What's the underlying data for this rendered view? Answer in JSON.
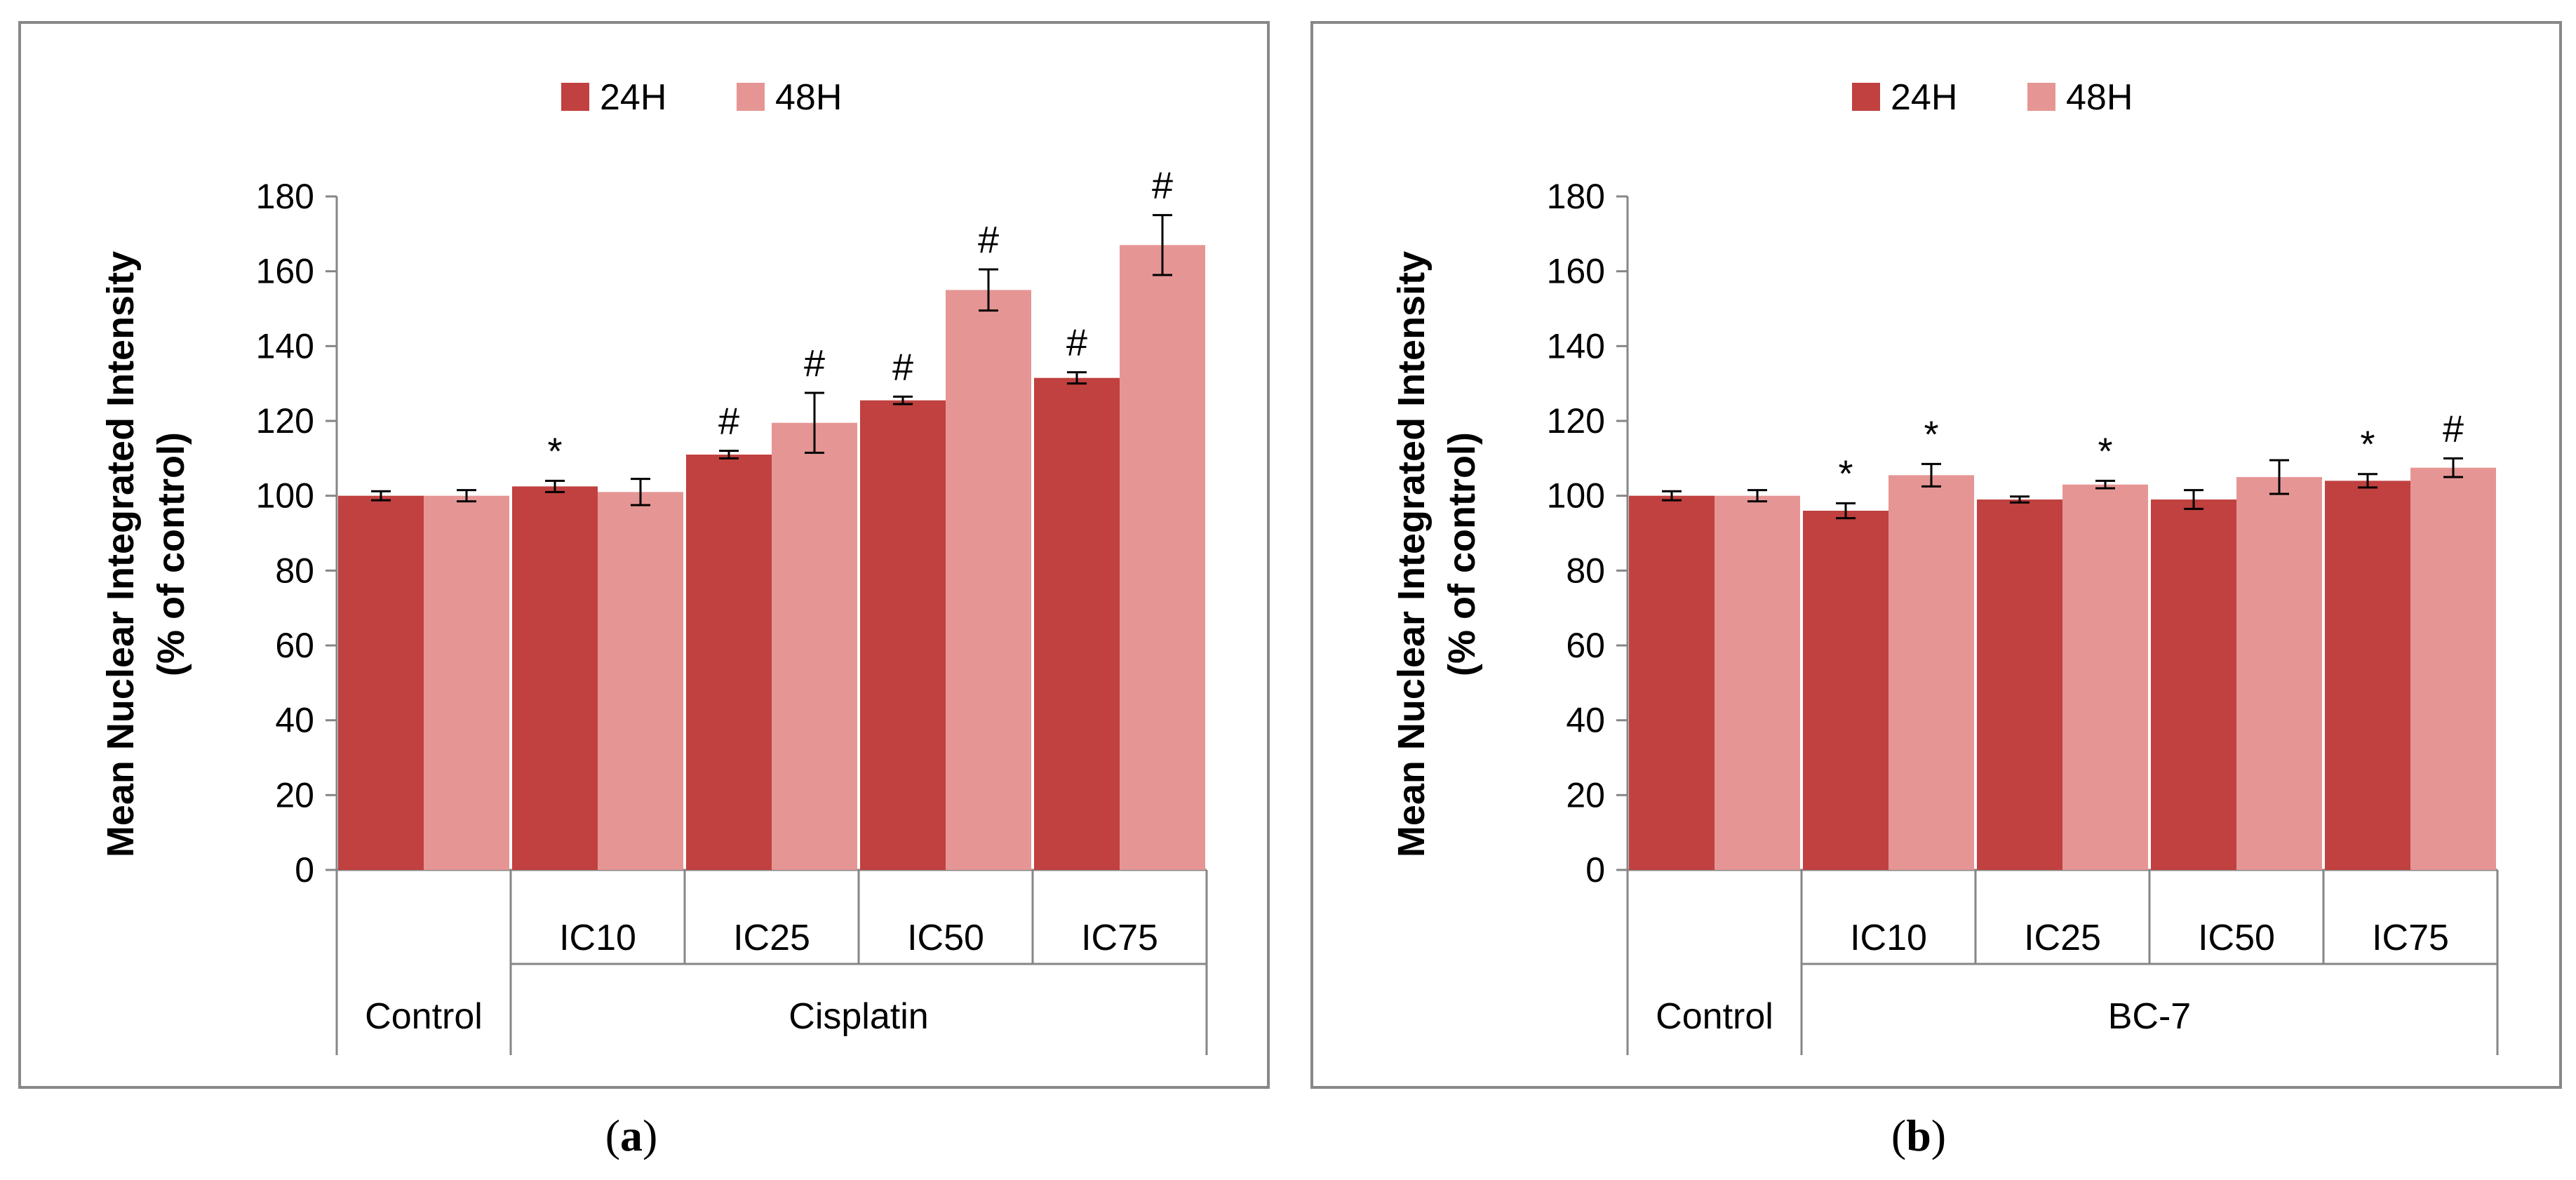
{
  "colors": {
    "series_24h": "#C0413F",
    "series_48h": "#E59694",
    "panel_border": "#888888",
    "axis": "#868686",
    "text": "#000000"
  },
  "chart_data": [
    {
      "panel": "a",
      "caption": "a",
      "type": "bar",
      "ylabel_line1": "Mean Nuclear Integrated Intensity",
      "ylabel_line2": "(% of control)",
      "ylim": [
        0,
        180
      ],
      "yticks": [
        0,
        20,
        40,
        60,
        80,
        100,
        120,
        140,
        160,
        180
      ],
      "categories": [
        "",
        "IC10",
        "IC25",
        "IC50",
        "IC75"
      ],
      "groups": [
        {
          "label": "Control",
          "span": [
            0,
            0
          ]
        },
        {
          "label": "Cisplatin",
          "span": [
            1,
            4
          ]
        }
      ],
      "series": [
        {
          "name": "24H",
          "values": [
            100,
            102.5,
            111,
            125.5,
            131.5
          ],
          "errors": [
            1.2,
            1.5,
            1.0,
            1.0,
            1.5
          ],
          "annotations": [
            "",
            "*",
            "#",
            "#",
            "#"
          ]
        },
        {
          "name": "48H",
          "values": [
            100,
            101,
            119.5,
            155,
            167
          ],
          "errors": [
            1.5,
            3.5,
            8,
            5.5,
            8
          ],
          "annotations": [
            "",
            "",
            "#",
            "#",
            "#"
          ]
        }
      ]
    },
    {
      "panel": "b",
      "caption": "b",
      "type": "bar",
      "ylabel_line1": "Mean Nuclear Integrated Intensity",
      "ylabel_line2": "(% of control)",
      "ylim": [
        0,
        180
      ],
      "yticks": [
        0,
        20,
        40,
        60,
        80,
        100,
        120,
        140,
        160,
        180
      ],
      "categories": [
        "",
        "IC10",
        "IC25",
        "IC50",
        "IC75"
      ],
      "groups": [
        {
          "label": "Control",
          "span": [
            0,
            0
          ]
        },
        {
          "label": "BC-7",
          "span": [
            1,
            4
          ]
        }
      ],
      "series": [
        {
          "name": "24H",
          "values": [
            100,
            96,
            99,
            99,
            104
          ],
          "errors": [
            1.2,
            2.0,
            0.8,
            2.5,
            1.8
          ],
          "annotations": [
            "",
            "*",
            "",
            "",
            "*"
          ]
        },
        {
          "name": "48H",
          "values": [
            100,
            105.5,
            103,
            105,
            107.5
          ],
          "errors": [
            1.5,
            3.0,
            1.0,
            4.5,
            2.5
          ],
          "annotations": [
            "",
            "*",
            "*",
            "",
            "#"
          ]
        }
      ]
    }
  ]
}
